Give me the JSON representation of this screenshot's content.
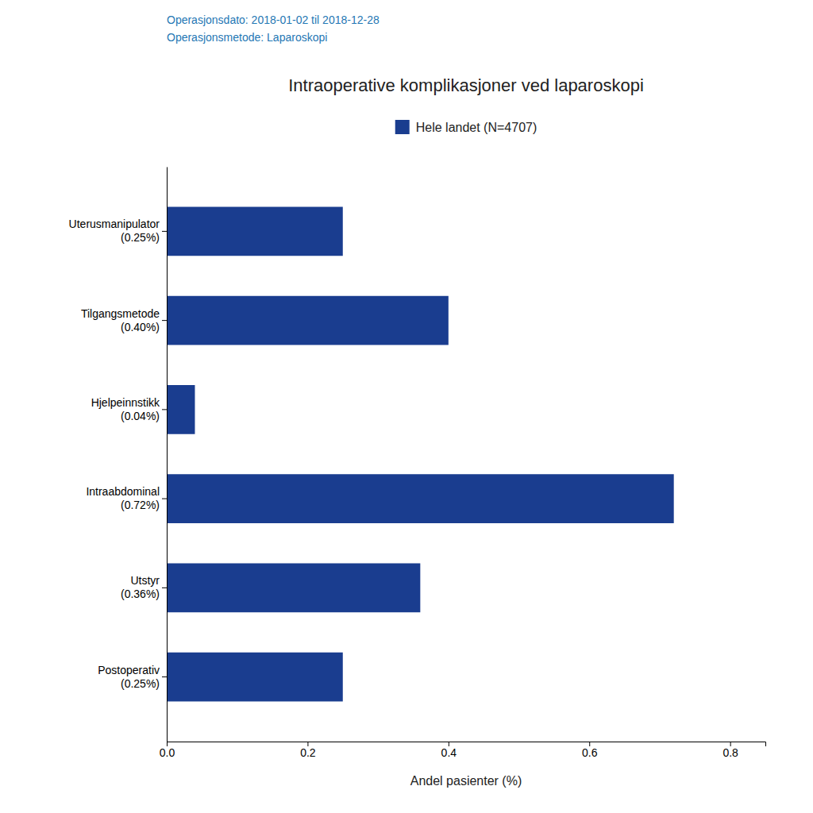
{
  "chart_data": {
    "type": "bar",
    "orientation": "horizontal",
    "title": "Intraoperative komplikasjoner ved laparoskopi",
    "subtitle": [
      "Operasjonsdato: 2018-01-02 til 2018-12-28",
      "Operasjonsmetode: Laparoskopi"
    ],
    "x_label": "Andel pasienter (%)",
    "categories": [
      "Uterusmanipulator\n(0.25%)",
      "Tilgangsmetode\n(0.40%)",
      "Hjelpeinnstikk\n(0.04%)",
      "Intraabdominal\n(0.72%)",
      "Utstyr\n(0.36%)",
      "Postoperativ\n(0.25%)"
    ],
    "series": [
      {
        "name": "Hele landet (N=4707)",
        "color": "#1a3d8f",
        "values": [
          0.25,
          0.4,
          0.04,
          0.72,
          0.36,
          0.25
        ]
      }
    ],
    "xlim": [
      0,
      0.85
    ],
    "xticks": [
      {
        "value": 0,
        "label": "0.0"
      },
      0.2,
      0.4,
      0.6,
      0.8
    ],
    "grid": false,
    "legend": "top"
  }
}
